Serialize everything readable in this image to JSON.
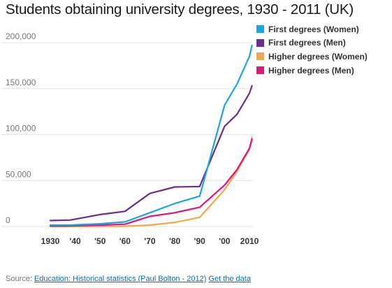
{
  "title": "Students obtaining university degrees, 1930 - 2011 (UK)",
  "source": {
    "prefix": "Source: ",
    "link_text": "Education: Historical statistics (Paul Bolton - 2012)",
    "get_data_text": "Get the data"
  },
  "chart_data": {
    "type": "line",
    "title": "Students obtaining university degrees, 1930 - 2011 (UK)",
    "xlabel": "",
    "ylabel": "",
    "x": [
      1930,
      1938,
      1950,
      1960,
      1970,
      1980,
      1990,
      2000,
      2005,
      2010,
      2011
    ],
    "xticks": [
      {
        "value": 1930,
        "label": "1930"
      },
      {
        "value": 1940,
        "label": "'40"
      },
      {
        "value": 1950,
        "label": "'50"
      },
      {
        "value": 1960,
        "label": "'60"
      },
      {
        "value": 1970,
        "label": "'70"
      },
      {
        "value": 1980,
        "label": "'80"
      },
      {
        "value": 1990,
        "label": "'90"
      },
      {
        "value": 2000,
        "label": "'00"
      },
      {
        "value": 2010,
        "label": "2010"
      }
    ],
    "xlim": [
      1928,
      2012
    ],
    "yticks": [
      {
        "value": 0,
        "label": "0"
      },
      {
        "value": 50000,
        "label": "50,000"
      },
      {
        "value": 100000,
        "label": "100,000"
      },
      {
        "value": 150000,
        "label": "150,000"
      },
      {
        "value": 200000,
        "label": "200,000"
      }
    ],
    "ylim": [
      0,
      200000
    ],
    "grid": true,
    "legend_position": "top-right",
    "series": [
      {
        "name": "First degrees (Women)",
        "color": "#1ba6e0",
        "values": [
          1500,
          1500,
          3000,
          5000,
          15000,
          25000,
          33000,
          132000,
          155000,
          185000,
          197000
        ]
      },
      {
        "name": "First degrees (Men)",
        "color": "#6b2e8f",
        "values": [
          6500,
          7000,
          13000,
          16500,
          36000,
          43000,
          43500,
          109000,
          122000,
          145000,
          153000
        ]
      },
      {
        "name": "Higher degrees (Women)",
        "color": "#f5a746",
        "values": [
          100,
          100,
          200,
          300,
          1500,
          4500,
          10000,
          40000,
          60000,
          84000,
          97000
        ]
      },
      {
        "name": "Higher degrees (Men)",
        "color": "#e2137d",
        "values": [
          500,
          700,
          1500,
          2500,
          11000,
          15000,
          21000,
          45000,
          62000,
          85000,
          95000
        ]
      }
    ]
  }
}
